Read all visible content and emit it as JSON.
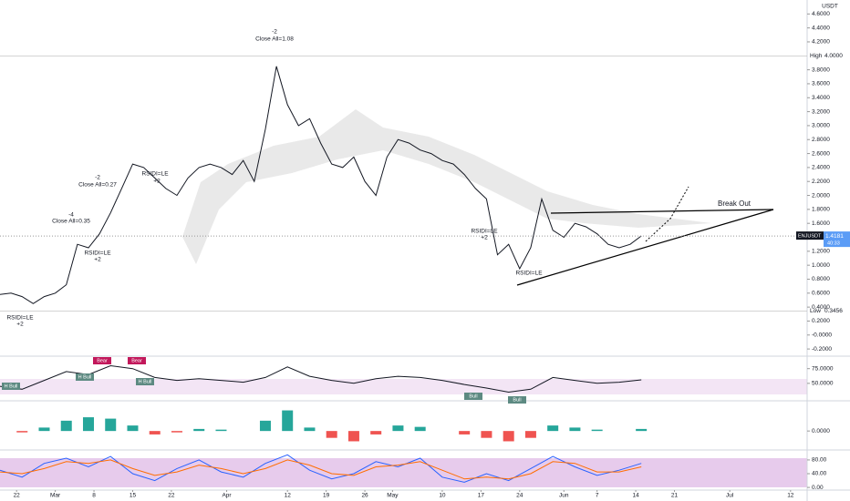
{
  "chart_data": [
    {
      "type": "line",
      "symbol": "ENJUSDT",
      "currency": "USDT",
      "x": [
        0,
        2,
        4,
        6,
        8,
        10,
        12,
        14,
        16,
        18,
        20,
        22,
        24,
        26,
        28,
        30,
        32,
        34,
        36,
        38,
        40,
        42,
        44,
        46,
        48,
        50,
        52,
        54,
        56,
        58,
        60,
        62,
        64,
        66,
        68,
        70,
        72,
        74,
        76,
        78,
        80,
        82,
        84,
        86,
        88,
        90,
        92,
        94,
        96,
        98,
        100,
        102,
        104,
        106,
        108,
        110,
        112,
        114,
        116
      ],
      "series": [
        {
          "color": "#131722",
          "values": [
            0.58,
            0.6,
            0.55,
            0.45,
            0.55,
            0.6,
            0.72,
            1.3,
            1.25,
            1.45,
            1.75,
            2.1,
            2.45,
            2.4,
            2.25,
            2.1,
            2.0,
            2.25,
            2.4,
            2.45,
            2.4,
            2.3,
            2.5,
            2.2,
            2.95,
            3.85,
            3.3,
            3.0,
            3.1,
            2.75,
            2.45,
            2.4,
            2.55,
            2.2,
            2.0,
            2.55,
            2.8,
            2.75,
            2.65,
            2.6,
            2.5,
            2.45,
            2.3,
            2.1,
            1.95,
            1.15,
            1.3,
            0.95,
            1.25,
            1.95,
            1.5,
            1.4,
            1.6,
            1.55,
            1.45,
            1.3,
            1.25,
            1.3,
            1.42
          ]
        }
      ],
      "xlim": [
        0,
        146
      ],
      "xticks": [
        {
          "value": 3,
          "label": "22"
        },
        {
          "value": 10,
          "label": "Mar"
        },
        {
          "value": 17,
          "label": "8"
        },
        {
          "value": 24,
          "label": "15"
        },
        {
          "value": 31,
          "label": "22"
        },
        {
          "value": 41,
          "label": "Apr"
        },
        {
          "value": 52,
          "label": "12"
        },
        {
          "value": 59,
          "label": "19"
        },
        {
          "value": 66,
          "label": "26"
        },
        {
          "value": 71,
          "label": "May"
        },
        {
          "value": 80,
          "label": "10"
        },
        {
          "value": 87,
          "label": "17"
        },
        {
          "value": 94,
          "label": "24"
        },
        {
          "value": 102,
          "label": "Jun"
        },
        {
          "value": 108,
          "label": "7"
        },
        {
          "value": 115,
          "label": "14"
        },
        {
          "value": 122,
          "label": "21"
        },
        {
          "value": 132,
          "label": "Jul"
        },
        {
          "value": 143,
          "label": "12"
        }
      ],
      "ylim": [
        -0.29,
        4.8
      ],
      "yticks": [
        {
          "value": 4.6,
          "label": "4.6000"
        },
        {
          "value": 4.4,
          "label": "4.4000"
        },
        {
          "value": 4.2,
          "label": "4.2000"
        },
        {
          "value": 3.8,
          "label": "3.8000"
        },
        {
          "value": 3.6,
          "label": "3.6000"
        },
        {
          "value": 3.4,
          "label": "3.4000"
        },
        {
          "value": 3.2,
          "label": "3.2000"
        },
        {
          "value": 3.0,
          "label": "3.0000"
        },
        {
          "value": 2.8,
          "label": "2.8000"
        },
        {
          "value": 2.6,
          "label": "2.6000"
        },
        {
          "value": 2.4,
          "label": "2.4000"
        },
        {
          "value": 2.2,
          "label": "2.2000"
        },
        {
          "value": 2.0,
          "label": "2.0000"
        },
        {
          "value": 1.8,
          "label": "1.8000"
        },
        {
          "value": 1.6,
          "label": "1.6000"
        },
        {
          "value": 1.2,
          "label": "1.2000"
        },
        {
          "value": 1.0,
          "label": "1.0000"
        },
        {
          "value": 0.8,
          "label": "0.8000"
        },
        {
          "value": 0.6,
          "label": "0.6000"
        },
        {
          "value": 0.4,
          "label": "0.4000"
        },
        {
          "value": 0.2,
          "label": "0.2000"
        },
        {
          "value": 0,
          "label": "-0.0000"
        },
        {
          "value": -0.2,
          "label": "-0.2000"
        }
      ],
      "levels": [
        {
          "name": "High",
          "value": 4.0,
          "label": "4.0000"
        },
        {
          "name": "Low",
          "value": 0.3456
        }
      ],
      "last_price": 1.4181,
      "countdown": "40:33",
      "annotations": [
        "-4",
        "Close All=0.35",
        "-2",
        "Close All=0.27",
        "-2",
        "Close All=1.08",
        "RSIDI=LE",
        "+2",
        "RSIDI=LE",
        "+2",
        "RSIDI=LE",
        "+2",
        "RSIDI=LE",
        "+2",
        "RSIDI=LE",
        "Break Out"
      ],
      "grid": false
    },
    {
      "type": "line",
      "x": [
        0,
        4,
        8,
        12,
        16,
        20,
        24,
        28,
        32,
        36,
        40,
        44,
        48,
        52,
        56,
        60,
        64,
        68,
        72,
        76,
        80,
        84,
        88,
        92,
        96,
        100,
        104,
        108,
        112,
        116
      ],
      "series": [
        {
          "color": "#131722",
          "values": [
            45,
            40,
            55,
            70,
            65,
            80,
            75,
            60,
            55,
            58,
            55,
            52,
            60,
            78,
            62,
            55,
            50,
            58,
            62,
            60,
            55,
            48,
            42,
            35,
            40,
            60,
            55,
            50,
            52,
            56
          ]
        }
      ],
      "ylim": [
        25,
        90
      ],
      "yticks": [
        {
          "value": 75,
          "label": "75.0000"
        },
        {
          "value": 50,
          "label": "50.0000"
        }
      ],
      "annotations": [
        "H Bull",
        "H Bull",
        "Bear",
        "Bear",
        "H Bull",
        "Bull",
        "Bull"
      ]
    },
    {
      "type": "bar",
      "x": [
        0,
        4,
        8,
        12,
        16,
        20,
        24,
        28,
        32,
        36,
        40,
        44,
        48,
        52,
        56,
        60,
        64,
        68,
        72,
        76,
        80,
        84,
        88,
        92,
        96,
        100,
        104,
        108,
        112,
        116
      ],
      "values": [
        0.0,
        -0.02,
        0.05,
        0.15,
        0.2,
        0.18,
        0.08,
        -0.05,
        -0.02,
        0.03,
        0.02,
        0.0,
        0.15,
        0.3,
        0.05,
        -0.1,
        -0.15,
        -0.05,
        0.08,
        0.06,
        0.0,
        -0.05,
        -0.1,
        -0.15,
        -0.1,
        0.08,
        0.05,
        0.02,
        0.0,
        0.03
      ],
      "colors": {
        "positive": "#26a69a",
        "negative": "#ef5350"
      },
      "ylim": [
        -0.25,
        0.4
      ],
      "yticks": [
        {
          "value": 0,
          "label": "0.0000"
        }
      ]
    },
    {
      "type": "line",
      "x": [
        0,
        4,
        8,
        12,
        16,
        20,
        24,
        28,
        32,
        36,
        40,
        44,
        48,
        52,
        56,
        60,
        64,
        68,
        72,
        76,
        80,
        84,
        88,
        92,
        96,
        100,
        104,
        108,
        112,
        116
      ],
      "series": [
        {
          "color": "#2962ff",
          "values": [
            50,
            30,
            70,
            85,
            60,
            90,
            40,
            20,
            55,
            80,
            45,
            30,
            70,
            95,
            50,
            25,
            40,
            75,
            60,
            85,
            30,
            15,
            40,
            20,
            55,
            90,
            60,
            35,
            50,
            70
          ]
        },
        {
          "color": "#ff6d00",
          "values": [
            45,
            40,
            55,
            75,
            70,
            80,
            55,
            35,
            45,
            65,
            55,
            40,
            55,
            80,
            65,
            40,
            35,
            60,
            65,
            75,
            50,
            25,
            30,
            25,
            40,
            75,
            70,
            45,
            45,
            60
          ]
        }
      ],
      "ylim": [
        -13,
        101
      ],
      "yticks": [
        {
          "value": 80,
          "label": "80.00"
        },
        {
          "value": 40,
          "label": "40.00"
        },
        {
          "value": 0,
          "label": "0.00"
        }
      ]
    }
  ]
}
